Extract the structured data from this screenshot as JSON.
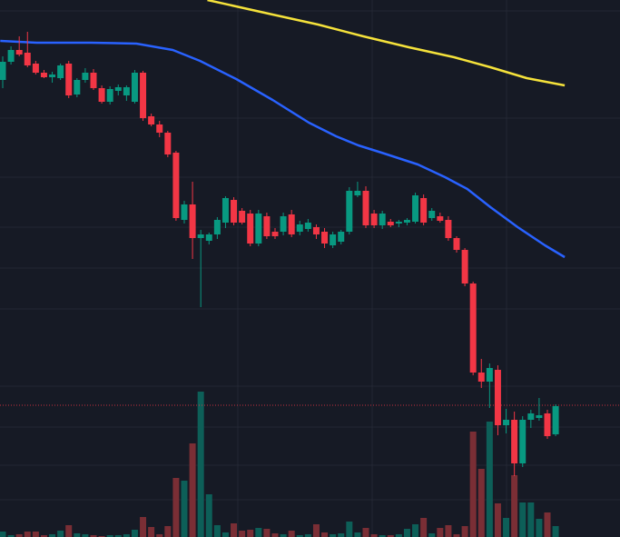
{
  "chart_data": {
    "type": "candlestick",
    "x": [
      0,
      1,
      2,
      3,
      4,
      5,
      6,
      7,
      8,
      9,
      10,
      11,
      12,
      13,
      14,
      15,
      16,
      17,
      18,
      19,
      20,
      21,
      22,
      23,
      24,
      25,
      26,
      27,
      28,
      29,
      30,
      31,
      32,
      33,
      34,
      35,
      36,
      37,
      38,
      39,
      40,
      41,
      42,
      43,
      44,
      45,
      46,
      47,
      48,
      49,
      50,
      51,
      52,
      53,
      54,
      55,
      56,
      57,
      58,
      59,
      60,
      61,
      62,
      63,
      64,
      65,
      66,
      67
    ],
    "open": [
      503,
      523,
      536,
      533,
      521,
      511,
      506,
      505,
      521,
      487,
      503,
      511,
      494,
      479,
      491,
      486,
      479,
      511,
      463,
      454,
      445,
      423,
      349,
      366,
      329,
      326,
      333,
      346,
      371,
      359,
      356,
      323,
      353,
      336,
      336,
      355,
      336,
      339,
      341,
      336,
      321,
      325,
      336,
      376,
      381,
      356,
      343,
      347,
      345,
      346,
      347,
      373,
      351,
      353,
      349,
      329,
      316,
      279,
      181,
      171,
      184,
      123,
      129,
      81,
      129,
      131,
      136,
      113
    ],
    "high": [
      529,
      540,
      551,
      556,
      524,
      514,
      512,
      521,
      524,
      505,
      516,
      515,
      497,
      496,
      498,
      497,
      514,
      513,
      466,
      458,
      447,
      425,
      370,
      391,
      338,
      335,
      352,
      375,
      374,
      362,
      360,
      360,
      357,
      340,
      357,
      360,
      348,
      350,
      344,
      340,
      336,
      338,
      385,
      391,
      386,
      360,
      359,
      350,
      349,
      351,
      379,
      377,
      362,
      357,
      353,
      331,
      318,
      281,
      196,
      191,
      189,
      141,
      138,
      133,
      140,
      153,
      140,
      146
    ],
    "low": [
      494,
      520,
      529,
      517,
      509,
      505,
      500,
      503,
      483,
      484,
      500,
      492,
      477,
      476,
      486,
      480,
      477,
      458,
      452,
      440,
      418,
      348,
      345,
      306,
      253,
      322,
      328,
      340,
      343,
      344,
      320,
      320,
      328,
      328,
      332,
      330,
      332,
      336,
      328,
      318,
      318,
      322,
      333,
      374,
      340,
      340,
      339,
      341,
      341,
      343,
      345,
      343,
      348,
      346,
      326,
      313,
      276,
      178,
      164,
      142,
      112,
      114,
      67,
      77,
      120,
      128,
      108,
      111
    ],
    "close": [
      523,
      536,
      531,
      519,
      511,
      506,
      509,
      519,
      486,
      503,
      511,
      494,
      479,
      493,
      495,
      495,
      511,
      461,
      454,
      445,
      421,
      351,
      366,
      329,
      333,
      333,
      349,
      373,
      346,
      346,
      323,
      356,
      331,
      331,
      353,
      333,
      344,
      346,
      333,
      323,
      333,
      336,
      381,
      381,
      343,
      343,
      356,
      343,
      347,
      349,
      376,
      346,
      359,
      348,
      329,
      316,
      279,
      181,
      171,
      186,
      123,
      129,
      81,
      129,
      136,
      134,
      111,
      144
    ],
    "volume": [
      6,
      2,
      3,
      6,
      6,
      2,
      3,
      7,
      13,
      4,
      3,
      2,
      1,
      2,
      2,
      3,
      8,
      22,
      11,
      3,
      12,
      65,
      62,
      103,
      160,
      47,
      13,
      5,
      15,
      7,
      8,
      10,
      9,
      4,
      3,
      7,
      2,
      3,
      14,
      5,
      3,
      4,
      17,
      5,
      10,
      3,
      2,
      2,
      3,
      9,
      14,
      21,
      4,
      10,
      13,
      3,
      12,
      116,
      75,
      127,
      37,
      21,
      68,
      38,
      38,
      20,
      27,
      12
    ],
    "up_color": "#089981",
    "down_color": "#f23645",
    "volume_up_color": "#0d5f58",
    "volume_down_color": "#7a2e35",
    "xlim": [
      -0.33,
      74.8
    ],
    "ylim": [
      0,
      591
    ],
    "volume_lim": [
      0,
      591
    ],
    "last_price": 145,
    "last_price_color": "#f23645",
    "overlays": [
      {
        "color": "#2962ff",
        "x": [
          -0.3,
          4.1,
          10.7,
          16.2,
          20.6,
          23.9,
          28.3,
          32.7,
          37.1,
          40.4,
          43.1,
          45.9,
          50.3,
          53.6,
          56.3,
          59.1,
          62.4,
          65.7,
          68.1
        ],
        "values": [
          546,
          544,
          544,
          543,
          536,
          524,
          504,
          481,
          456,
          441,
          431,
          423,
          410,
          396,
          383,
          363,
          341,
          321,
          308
        ]
      },
      {
        "color": "#f5e23b",
        "x": [
          24.8,
          32.7,
          38.2,
          43.7,
          49.2,
          54.7,
          59.1,
          63.5,
          68.1
        ],
        "values": [
          591,
          575,
          564,
          551,
          539,
          528,
          517,
          505,
          497
        ]
      }
    ]
  }
}
